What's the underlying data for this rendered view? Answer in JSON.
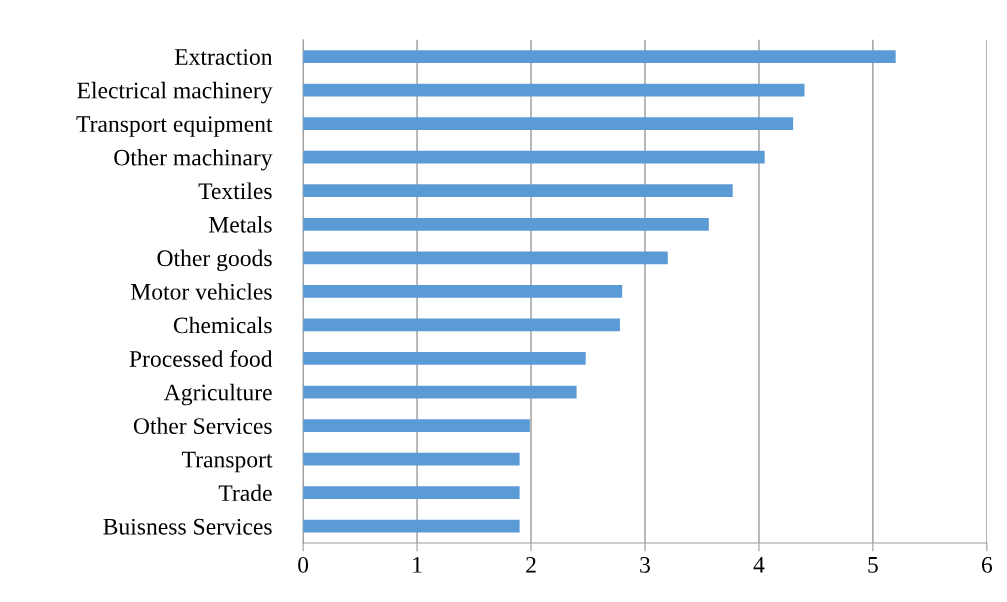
{
  "chart_data": {
    "type": "bar",
    "orientation": "horizontal",
    "categories": [
      "Extraction",
      "Electrical machinery",
      "Transport equipment",
      "Other machinary",
      "Textiles",
      "Metals",
      "Other goods",
      "Motor vehicles",
      "Chemicals",
      "Processed food",
      "Agriculture",
      "Other Services",
      "Transport",
      "Trade",
      "Buisness Services"
    ],
    "values": [
      5.2,
      4.4,
      4.3,
      4.05,
      3.77,
      3.56,
      3.2,
      2.8,
      2.78,
      2.48,
      2.4,
      1.99,
      1.9,
      1.9,
      1.9
    ],
    "color": "#5b9bd5",
    "xlim": [
      0,
      6
    ],
    "xticks": [
      0,
      1,
      2,
      3,
      4,
      5,
      6
    ],
    "grid": "x"
  }
}
